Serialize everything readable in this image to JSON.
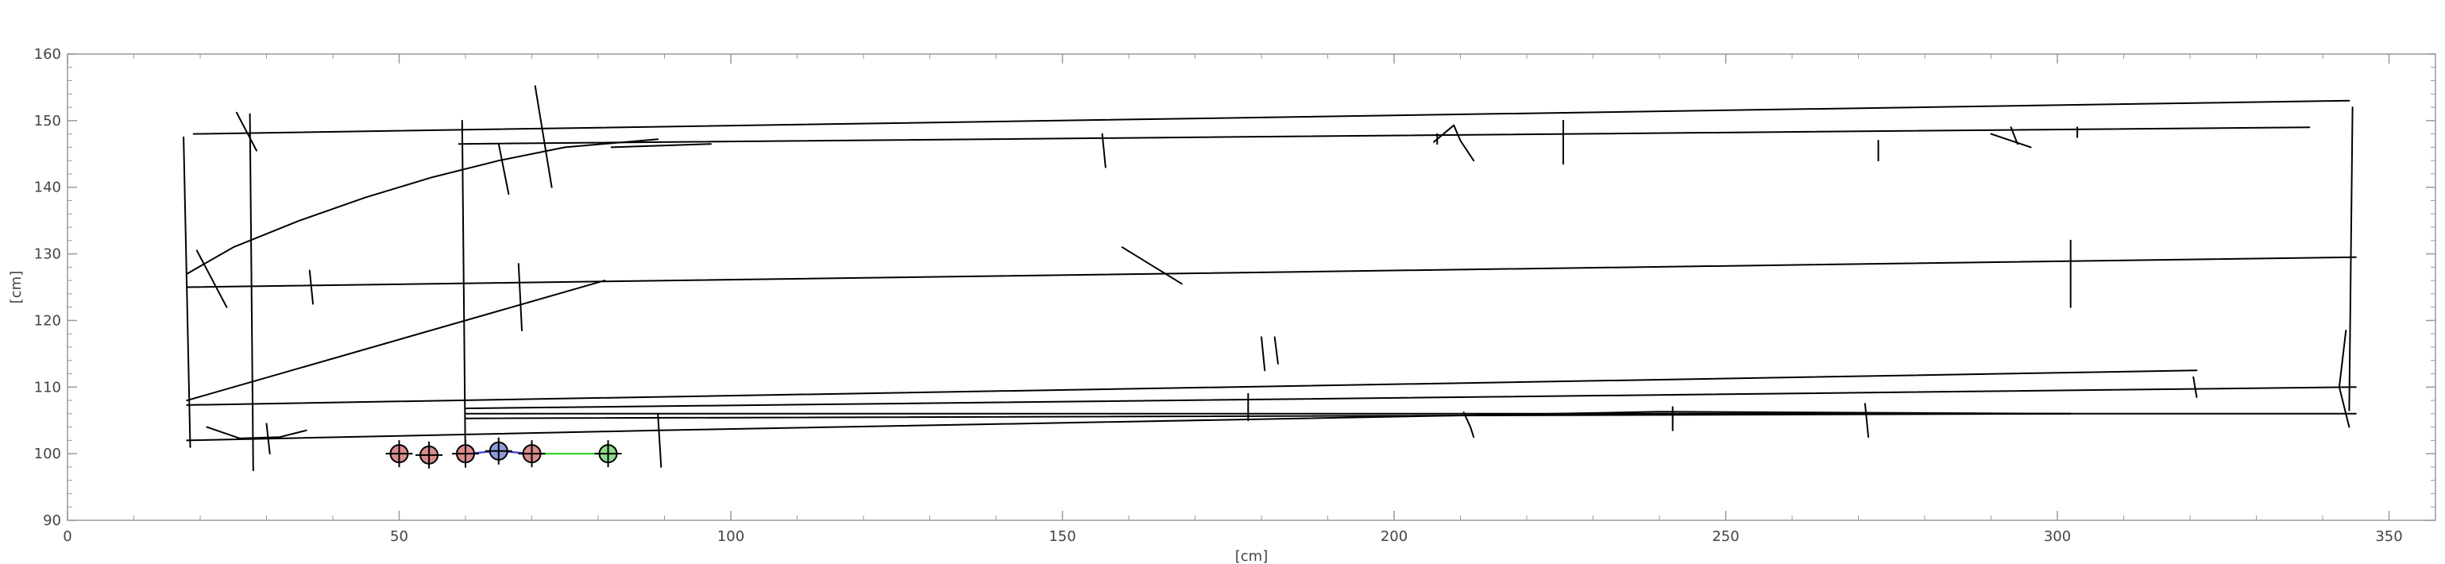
{
  "chart_data": {
    "type": "line",
    "title": "",
    "xlabel": "[cm]",
    "ylabel": "[cm]",
    "xlim": [
      0,
      357
    ],
    "ylim": [
      90,
      160
    ],
    "x_ticks": [
      "0",
      "50",
      "100",
      "150",
      "200",
      "250",
      "300",
      "350"
    ],
    "y_ticks": [
      "90",
      "100",
      "110",
      "120",
      "130",
      "140",
      "150",
      "160"
    ],
    "x_tick_values": [
      0,
      50,
      100,
      150,
      200,
      250,
      300,
      350
    ],
    "y_tick_values": [
      90,
      100,
      110,
      120,
      130,
      140,
      150,
      160
    ],
    "grid": false,
    "line_color": "#000000",
    "series": [
      {
        "values": [
          [
            19,
            148
          ],
          [
            344,
            153
          ]
        ]
      },
      {
        "values": [
          [
            59,
            146.5
          ],
          [
            338,
            149
          ]
        ]
      },
      {
        "values": [
          [
            82,
            146
          ],
          [
            97,
            146.5
          ]
        ]
      },
      {
        "values": [
          [
            18,
            125
          ],
          [
            345,
            129.5
          ]
        ]
      },
      {
        "values": [
          [
            18,
            107.3
          ],
          [
            321,
            112.5
          ]
        ]
      },
      {
        "values": [
          [
            60,
            106.8
          ],
          [
            345,
            110
          ]
        ]
      },
      {
        "values": [
          [
            60,
            106
          ],
          [
            345,
            106
          ]
        ]
      },
      {
        "values": [
          [
            60,
            105.3
          ],
          [
            302,
            106
          ]
        ]
      },
      {
        "values": [
          [
            18,
            102
          ],
          [
            89,
            103.5
          ],
          [
            240,
            106.3
          ],
          [
            302,
            106
          ]
        ]
      },
      {
        "values": [
          [
            18,
            108
          ],
          [
            81,
            126
          ]
        ]
      },
      {
        "values": [
          [
            18,
            127
          ],
          [
            25,
            131
          ],
          [
            35,
            135
          ],
          [
            45,
            138.5
          ],
          [
            55,
            141.5
          ],
          [
            65,
            144
          ],
          [
            75,
            146
          ],
          [
            89,
            147.2
          ]
        ]
      },
      {
        "values": [
          [
            17.5,
            147.5
          ],
          [
            18.5,
            101
          ]
        ]
      },
      {
        "values": [
          [
            27.5,
            151
          ],
          [
            28,
            97.5
          ]
        ]
      },
      {
        "values": [
          [
            59.5,
            150
          ],
          [
            60,
            98
          ]
        ]
      },
      {
        "values": [
          [
            344.5,
            152
          ],
          [
            344,
            106.5
          ]
        ]
      },
      {
        "values": [
          [
            65,
            146.5
          ],
          [
            66.5,
            139
          ]
        ]
      },
      {
        "values": [
          [
            70.5,
            155.2
          ],
          [
            73,
            140
          ]
        ]
      },
      {
        "values": [
          [
            25.5,
            151.2
          ],
          [
            28.5,
            145.5
          ]
        ]
      },
      {
        "values": [
          [
            19.5,
            130.5
          ],
          [
            24,
            122
          ]
        ]
      },
      {
        "values": [
          [
            36.5,
            127.5
          ],
          [
            37,
            122.5
          ]
        ]
      },
      {
        "values": [
          [
            68,
            128.5
          ],
          [
            68.5,
            118.5
          ]
        ]
      },
      {
        "values": [
          [
            159,
            131
          ],
          [
            168,
            125.5
          ]
        ]
      },
      {
        "values": [
          [
            180,
            117.5
          ],
          [
            180.5,
            112.5
          ]
        ]
      },
      {
        "values": [
          [
            182,
            117.5
          ],
          [
            182.5,
            113.5
          ]
        ]
      },
      {
        "values": [
          [
            156,
            148
          ],
          [
            156.5,
            143
          ]
        ]
      },
      {
        "values": [
          [
            206,
            146.8
          ],
          [
            209,
            149.3
          ],
          [
            210,
            147
          ],
          [
            212,
            144
          ]
        ]
      },
      {
        "values": [
          [
            206.5,
            148
          ],
          [
            206.5,
            146.5
          ]
        ]
      },
      {
        "values": [
          [
            225.5,
            150
          ],
          [
            225.5,
            143.5
          ]
        ]
      },
      {
        "values": [
          [
            273,
            147
          ],
          [
            273,
            144
          ]
        ]
      },
      {
        "values": [
          [
            290,
            148
          ],
          [
            296,
            146
          ]
        ]
      },
      {
        "values": [
          [
            293,
            149
          ],
          [
            294,
            146.5
          ]
        ]
      },
      {
        "values": [
          [
            303,
            149
          ],
          [
            303,
            147.5
          ]
        ]
      },
      {
        "values": [
          [
            302,
            132
          ],
          [
            302,
            122
          ]
        ]
      },
      {
        "values": [
          [
            343.5,
            118.5
          ],
          [
            342.5,
            110
          ],
          [
            344,
            104
          ]
        ]
      },
      {
        "values": [
          [
            89,
            106
          ],
          [
            89.5,
            98
          ]
        ]
      },
      {
        "values": [
          [
            178,
            109
          ],
          [
            178,
            105
          ]
        ]
      },
      {
        "values": [
          [
            210.5,
            106.2
          ],
          [
            211.5,
            104
          ],
          [
            212,
            102.5
          ]
        ]
      },
      {
        "values": [
          [
            242,
            107
          ],
          [
            242,
            103.5
          ]
        ]
      },
      {
        "values": [
          [
            271,
            107.5
          ],
          [
            271.5,
            102.5
          ]
        ]
      },
      {
        "values": [
          [
            320.5,
            111.5
          ],
          [
            321,
            108.5
          ]
        ]
      },
      {
        "values": [
          [
            30,
            104.5
          ],
          [
            30.5,
            100
          ]
        ]
      },
      {
        "values": [
          [
            21,
            104
          ],
          [
            26,
            102.3
          ],
          [
            32,
            102.5
          ],
          [
            36,
            103.5
          ]
        ]
      }
    ],
    "connectors": [
      {
        "color": "#3b3bd6",
        "values": [
          [
            60,
            100
          ],
          [
            65,
            100.4
          ],
          [
            70,
            100
          ]
        ]
      },
      {
        "color": "#35d62d",
        "values": [
          [
            70,
            100
          ],
          [
            81.5,
            100
          ]
        ]
      }
    ],
    "markers": [
      {
        "x": 50,
        "y": 100,
        "color": "#d98c8c"
      },
      {
        "x": 54.5,
        "y": 99.8,
        "color": "#d98c8c"
      },
      {
        "x": 60,
        "y": 100,
        "color": "#d98c8c"
      },
      {
        "x": 65,
        "y": 100.4,
        "color": "#8f9ad9"
      },
      {
        "x": 70,
        "y": 100,
        "color": "#d98c8c"
      },
      {
        "x": 81.5,
        "y": 100,
        "color": "#8fd98c"
      }
    ]
  }
}
